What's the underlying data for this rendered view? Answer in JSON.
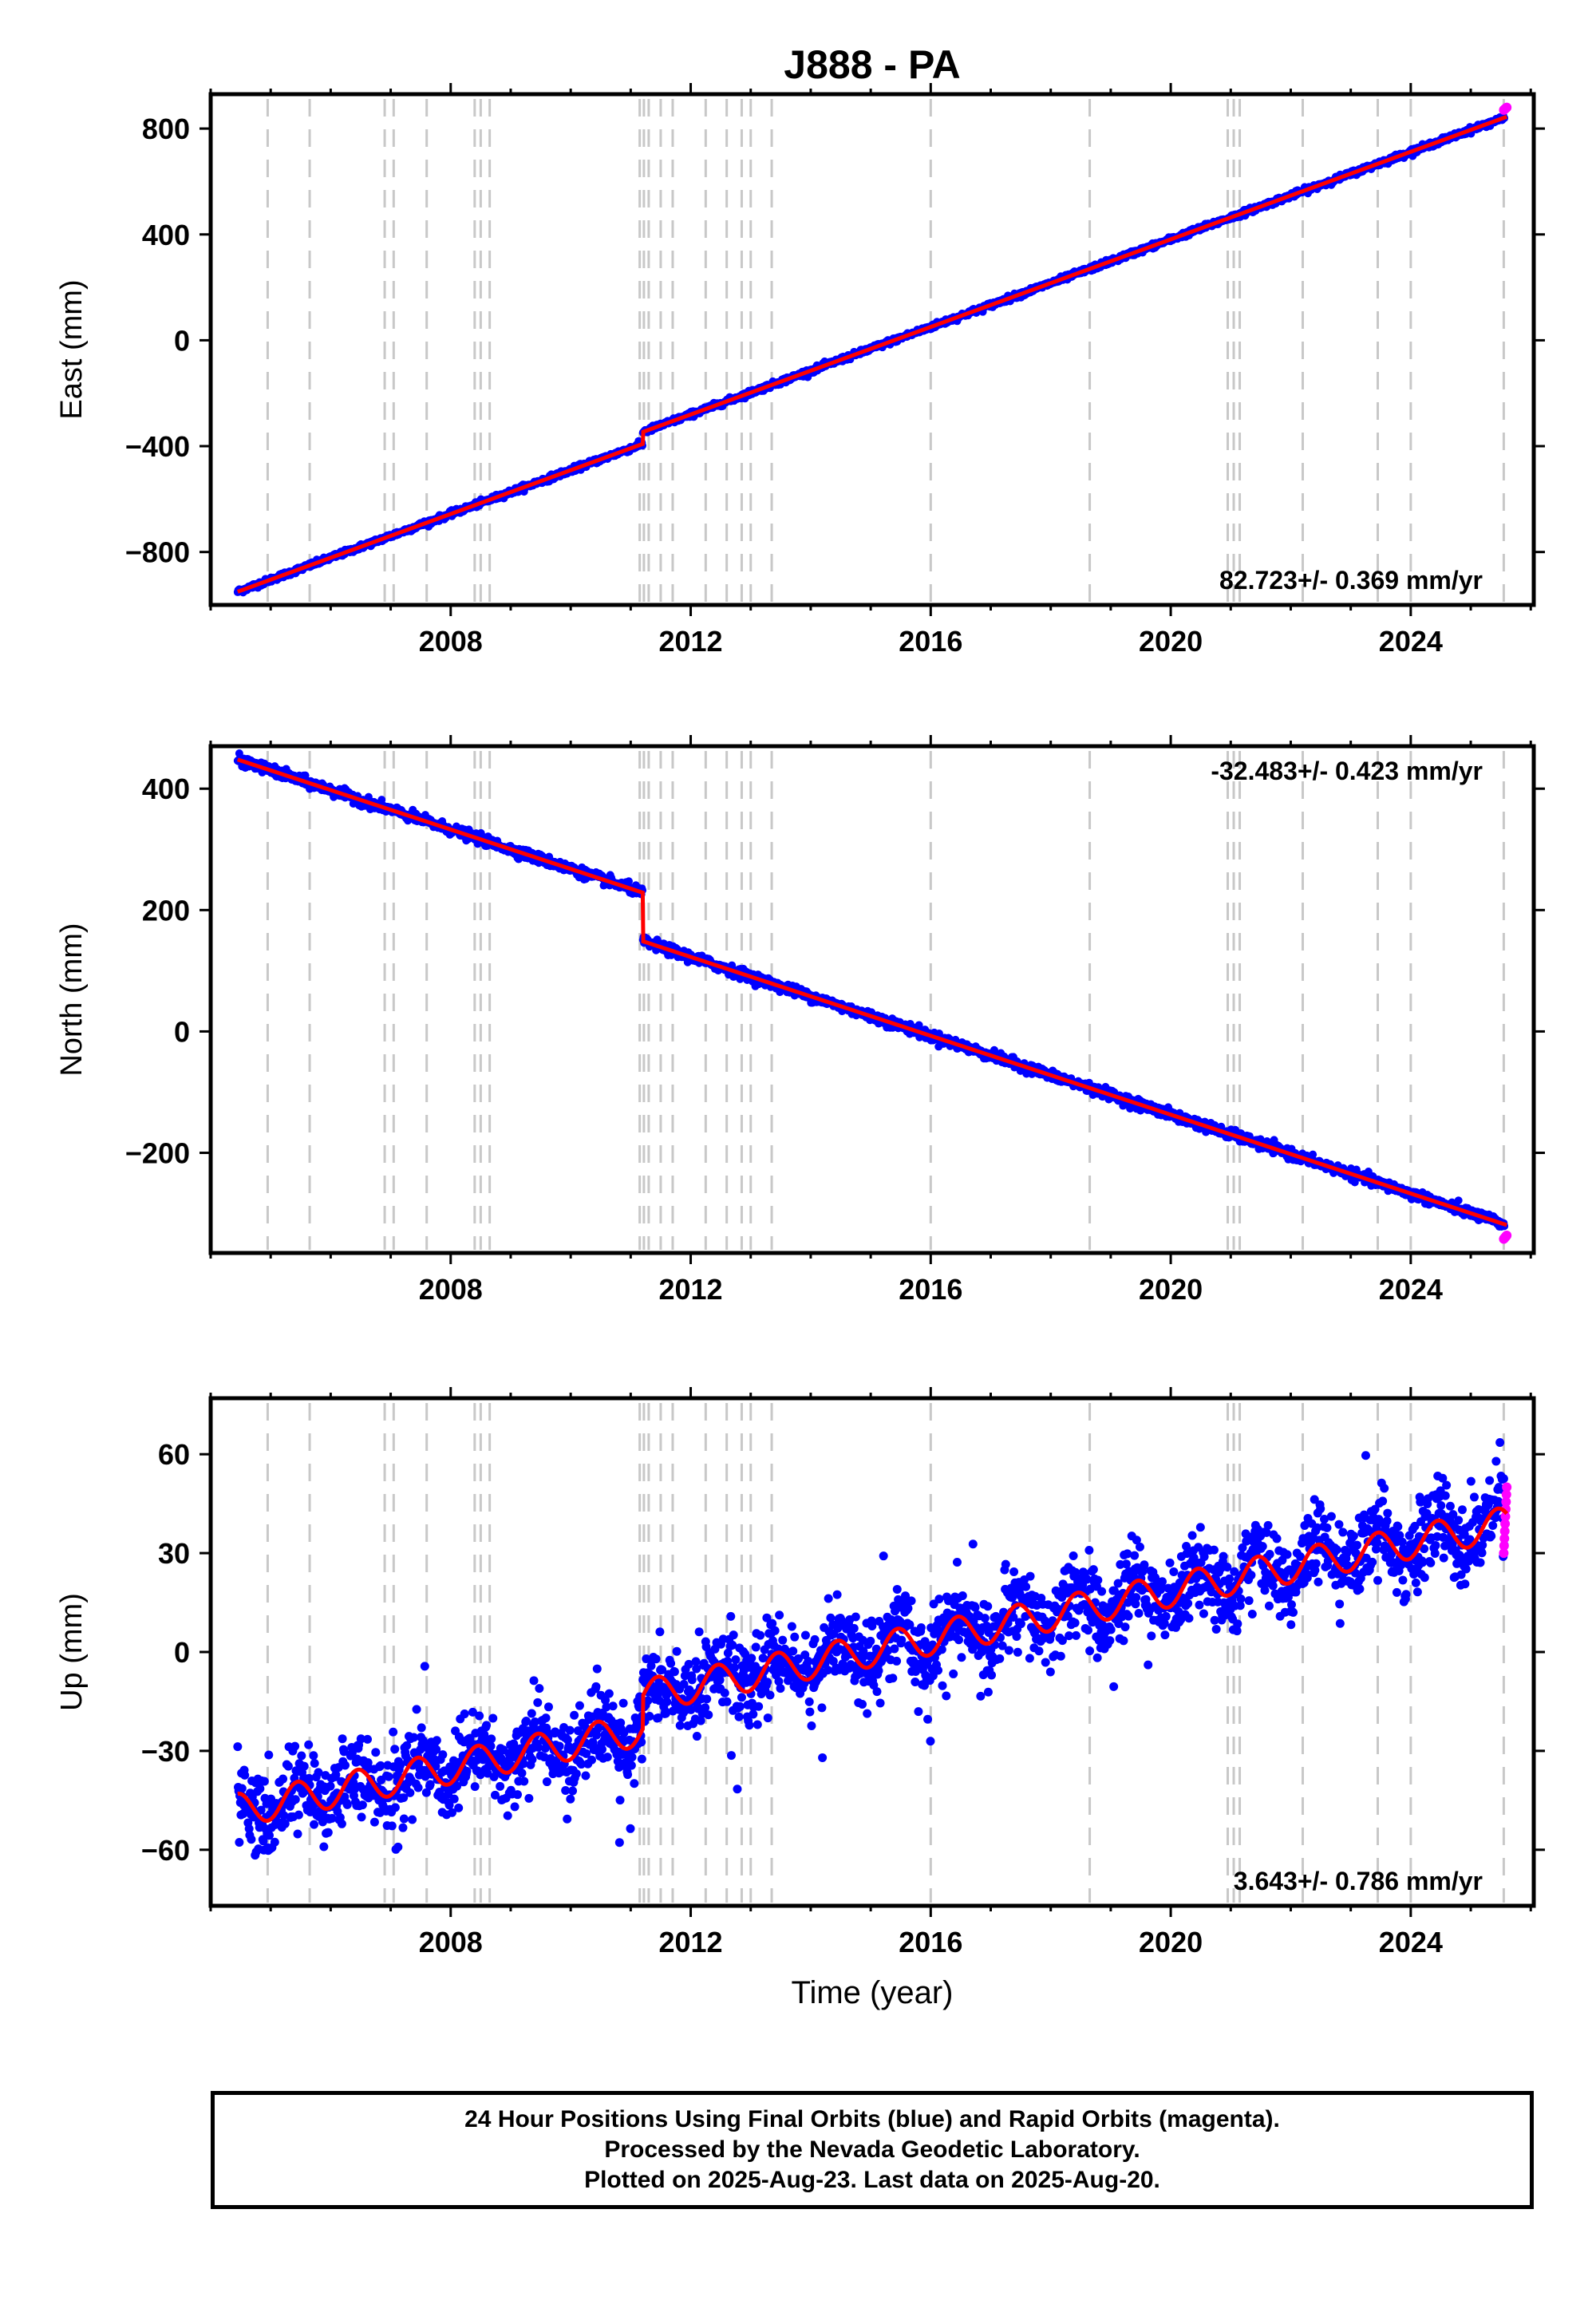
{
  "title": "J888 - PA",
  "colors": {
    "final_orbits": "#0000ff",
    "rapid_orbits": "#ff00ff",
    "model_fit": "#ff0000",
    "event_lines": "#c8c8c8",
    "axes": "#000000"
  },
  "event_lines": [
    2004.95,
    2005.65,
    2006.9,
    2007.05,
    2007.6,
    2008.4,
    2008.5,
    2008.65,
    2011.15,
    2011.22,
    2011.3,
    2011.5,
    2011.7,
    2012.25,
    2012.6,
    2012.85,
    2013.0,
    2013.35,
    2016.0,
    2018.65,
    2020.95,
    2021.05,
    2021.15,
    2022.2,
    2023.45,
    2024.0,
    2025.55
  ],
  "chart_data": [
    {
      "type": "scatter",
      "panel": "east",
      "ylabel": "East (mm)",
      "xlabel": "",
      "xlim": [
        2004.0,
        2026.05
      ],
      "ylim": [
        -1000,
        930
      ],
      "xticks": [
        2008,
        2012,
        2016,
        2020,
        2024
      ],
      "yticks": [
        -800,
        -400,
        0,
        400,
        800
      ],
      "ytick_labels": [
        "−800",
        "−400",
        "0",
        "400",
        "800"
      ],
      "rate_label": "82.723+/- 0.369 mm/yr",
      "rate_label_position": "bottom-right",
      "model": {
        "t_start": 2004.45,
        "t_end": 2025.6,
        "y_start": -950,
        "rate": 82.723,
        "step_time": 2011.2,
        "step": 45,
        "seasonal_amp": 0,
        "noise": 5
      },
      "rapid_orbits": {
        "t_start": 2025.55,
        "t_end": 2025.6,
        "y_range": [
          870,
          880
        ]
      }
    },
    {
      "type": "scatter",
      "panel": "north",
      "ylabel": "North (mm)",
      "xlabel": "",
      "xlim": [
        2004.0,
        2026.05
      ],
      "ylim": [
        -365,
        470
      ],
      "xticks": [
        2008,
        2012,
        2016,
        2020,
        2024
      ],
      "yticks": [
        -200,
        0,
        200,
        400
      ],
      "ytick_labels": [
        "−200",
        "0",
        "200",
        "400"
      ],
      "rate_label": "-32.483+/- 0.423 mm/yr",
      "rate_label_position": "top-right",
      "model": {
        "t_start": 2004.45,
        "t_end": 2025.6,
        "y_start": 448,
        "rate": -32.483,
        "step_time": 2011.2,
        "step": -80,
        "seasonal_amp": 0,
        "noise": 4
      },
      "rapid_orbits": {
        "t_start": 2025.55,
        "t_end": 2025.6,
        "y_range": [
          -342,
          -336
        ]
      }
    },
    {
      "type": "scatter",
      "panel": "up",
      "ylabel": "Up (mm)",
      "xlabel": "Time (year)",
      "xlim": [
        2004.0,
        2026.05
      ],
      "ylim": [
        -77,
        77
      ],
      "xticks": [
        2008,
        2012,
        2016,
        2020,
        2024
      ],
      "yticks": [
        -60,
        -30,
        0,
        30,
        60
      ],
      "ytick_labels": [
        "−60",
        "−30",
        "0",
        "30",
        "60"
      ],
      "rate_label": "3.643+/- 0.786 mm/yr",
      "rate_label_position": "bottom-right",
      "model": {
        "t_start": 2004.45,
        "t_end": 2025.6,
        "y_start": -48,
        "rate": 3.643,
        "step_time": 2011.2,
        "step": 10,
        "seasonal_amp": 5,
        "noise": 6
      },
      "rapid_orbits": {
        "t_start": 2025.55,
        "t_end": 2025.6,
        "y_range": [
          30,
          50
        ]
      }
    }
  ],
  "footer": {
    "line1": "24 Hour Positions Using Final Orbits (blue) and Rapid Orbits (magenta).",
    "line2": "Processed by the Nevada Geodetic Laboratory.",
    "line3": "Plotted on 2025-Aug-23. Last data on 2025-Aug-20."
  }
}
